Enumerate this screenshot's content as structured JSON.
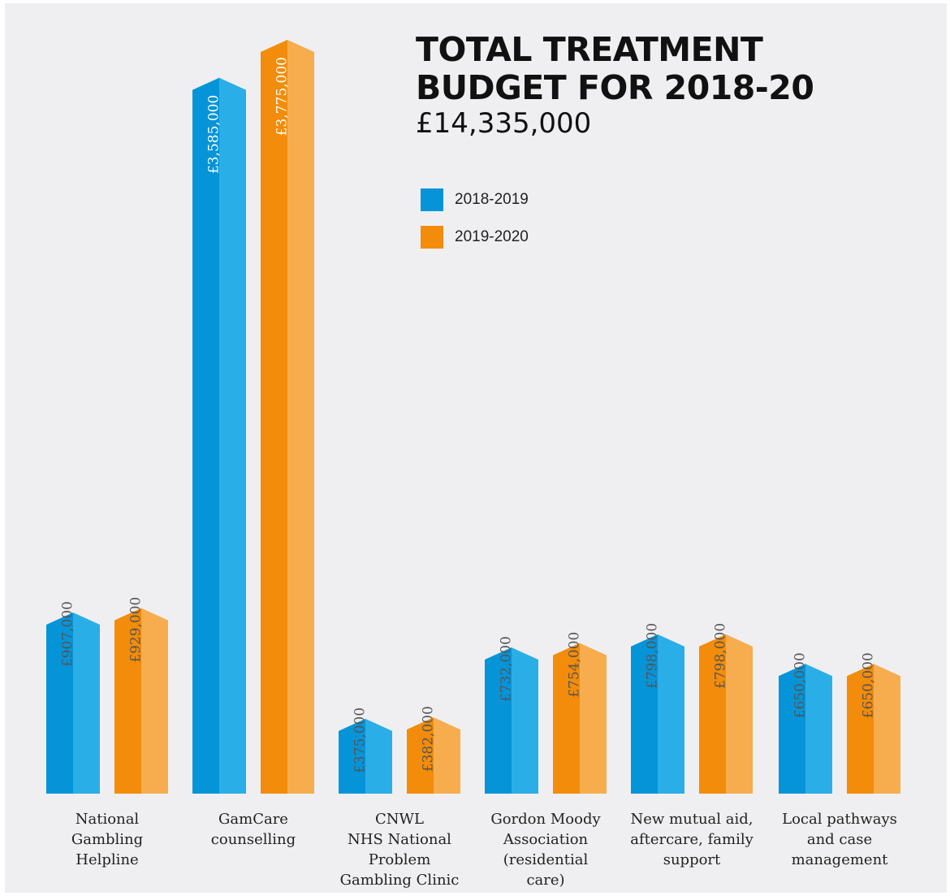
{
  "title": "TOTAL TREATMENT BUDGET FOR 2018-20",
  "total": "£14,335,000",
  "colors": {
    "series1_dark": "#0694d8",
    "series1_light": "#2aaee7",
    "series2_dark": "#f28c0a",
    "series2_light": "#f7ad4d",
    "background": "#efeff1"
  },
  "legend": [
    {
      "label": "2018-2019",
      "color": "#0694d8"
    },
    {
      "label": "2019-2020",
      "color": "#f28c0a"
    }
  ],
  "chart_data": {
    "type": "bar",
    "title": "TOTAL TREATMENT BUDGET FOR 2018-20",
    "subtitle": "£14,335,000",
    "categories": [
      "National\nGambling\nHelpline",
      "GamCare\ncounselling",
      "CNWL\nNHS National\nProblem\nGambling Clinic",
      "Gordon Moody\nAssociation\n(residential\ncare)",
      "New mutual aid,\naftercare, family\nsupport",
      "Local pathways\nand case\nmanagement"
    ],
    "series": [
      {
        "name": "2018-2019",
        "values": [
          907000,
          3585000,
          375000,
          732000,
          798000,
          650000
        ],
        "labels": [
          "£907,000",
          "£3,585,000",
          "£375,000",
          "£732,000",
          "£798,000",
          "£650,000"
        ]
      },
      {
        "name": "2019-2020",
        "values": [
          929000,
          3775000,
          382000,
          754000,
          798000,
          650000
        ],
        "labels": [
          "£929,000",
          "£3,775,000",
          "£382,000",
          "£754,000",
          "£798,000",
          "£650,000"
        ]
      }
    ],
    "ylim": [
      0,
      3775000
    ],
    "grid": false,
    "legend_position": "top-right"
  }
}
